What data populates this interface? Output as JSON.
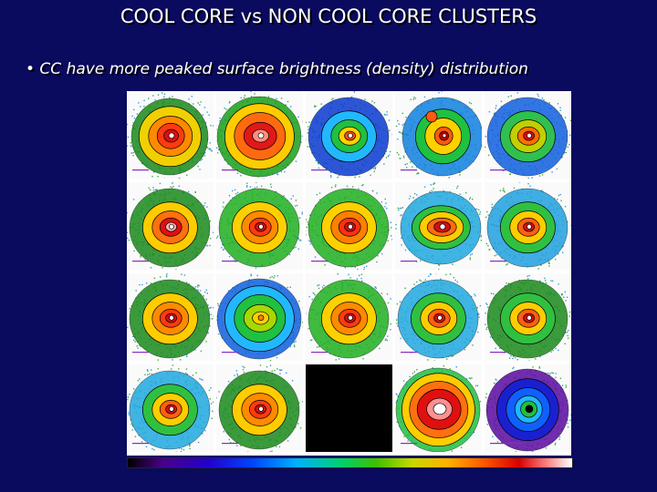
{
  "slide": {
    "title": "COOL CORE vs NON COOL CORE CLUSTERS",
    "bullet": "• CC have more peaked surface brightness (density) distribution"
  },
  "figure": {
    "rows": 4,
    "cols": 5,
    "tiles": [
      {
        "kind": "mid",
        "palette": [
          "#1a8a1a",
          "#f0d000",
          "#ff8a00",
          "#ff3a10",
          "#d81010",
          "#fff"
        ]
      },
      {
        "kind": "wide",
        "palette": [
          "#1aa01a",
          "#ffcc00",
          "#ff6a10",
          "#e01818",
          "#ff9080",
          "#fff"
        ]
      },
      {
        "kind": "peak",
        "palette": [
          "#0a3ad0",
          "#22b8ff",
          "#20c040",
          "#ffd000",
          "#ff4a10",
          "#fff"
        ]
      },
      {
        "kind": "double",
        "palette": [
          "#1080e0",
          "#20c040",
          "#ffd000",
          "#ff5a10",
          "#c00000",
          "#fff"
        ]
      },
      {
        "kind": "peak",
        "palette": [
          "#1060e0",
          "#30c050",
          "#c0d000",
          "#ff7000",
          "#d81010",
          "#fff"
        ]
      },
      {
        "kind": "peak",
        "palette": [
          "#1a8a1a",
          "#ffcc00",
          "#ff7010",
          "#e01010",
          "#ffb0b0",
          "#fff"
        ]
      },
      {
        "kind": "peak",
        "palette": [
          "#20b020",
          "#ffd000",
          "#ff8a00",
          "#ff3a10",
          "#d01010",
          "#fff"
        ]
      },
      {
        "kind": "peak",
        "palette": [
          "#20b020",
          "#ffd000",
          "#ff8000",
          "#ff3010",
          "#d01010",
          "#fff"
        ]
      },
      {
        "kind": "elong",
        "palette": [
          "#20a8e0",
          "#30c040",
          "#ffcc00",
          "#ff6a10",
          "#d01010",
          "#fff"
        ]
      },
      {
        "kind": "peak",
        "palette": [
          "#20a0e0",
          "#30c040",
          "#ffcc00",
          "#ff6010",
          "#d81010",
          "#fff"
        ]
      },
      {
        "kind": "peak",
        "palette": [
          "#1a8a1a",
          "#ffcc00",
          "#ff8a00",
          "#ff3a10",
          "#d01010",
          "#fff"
        ]
      },
      {
        "kind": "wide",
        "palette": [
          "#1060e0",
          "#22b8ff",
          "#20c040",
          "#a8d800",
          "#ffd000",
          "#ff8000"
        ]
      },
      {
        "kind": "peak",
        "palette": [
          "#20b020",
          "#ffd000",
          "#ff8a00",
          "#ff3a10",
          "#d01010",
          "#fff"
        ]
      },
      {
        "kind": "peak",
        "palette": [
          "#20a8e0",
          "#30c040",
          "#ffcc00",
          "#ff6010",
          "#d01010",
          "#fff"
        ]
      },
      {
        "kind": "peak",
        "palette": [
          "#1a8a1a",
          "#30c040",
          "#ffcc00",
          "#ff6010",
          "#d01010",
          "#fff"
        ]
      },
      {
        "kind": "peak",
        "palette": [
          "#20a8e0",
          "#30c040",
          "#ffcc00",
          "#ff6010",
          "#d01010",
          "#fff"
        ]
      },
      {
        "kind": "peak",
        "palette": [
          "#1a8a1a",
          "#ffcc00",
          "#ff8a00",
          "#ff3a10",
          "#d01010",
          "#fff"
        ]
      },
      {
        "kind": "blank",
        "palette": []
      },
      {
        "kind": "big",
        "palette": [
          "#20c040",
          "#ffcc00",
          "#ff7010",
          "#e01010",
          "#ff9090",
          "#fff"
        ]
      },
      {
        "kind": "ring",
        "palette": [
          "#5a0aa0",
          "#1a20d0",
          "#1060ff",
          "#20b8ff",
          "#20c040",
          "#000"
        ]
      }
    ]
  }
}
